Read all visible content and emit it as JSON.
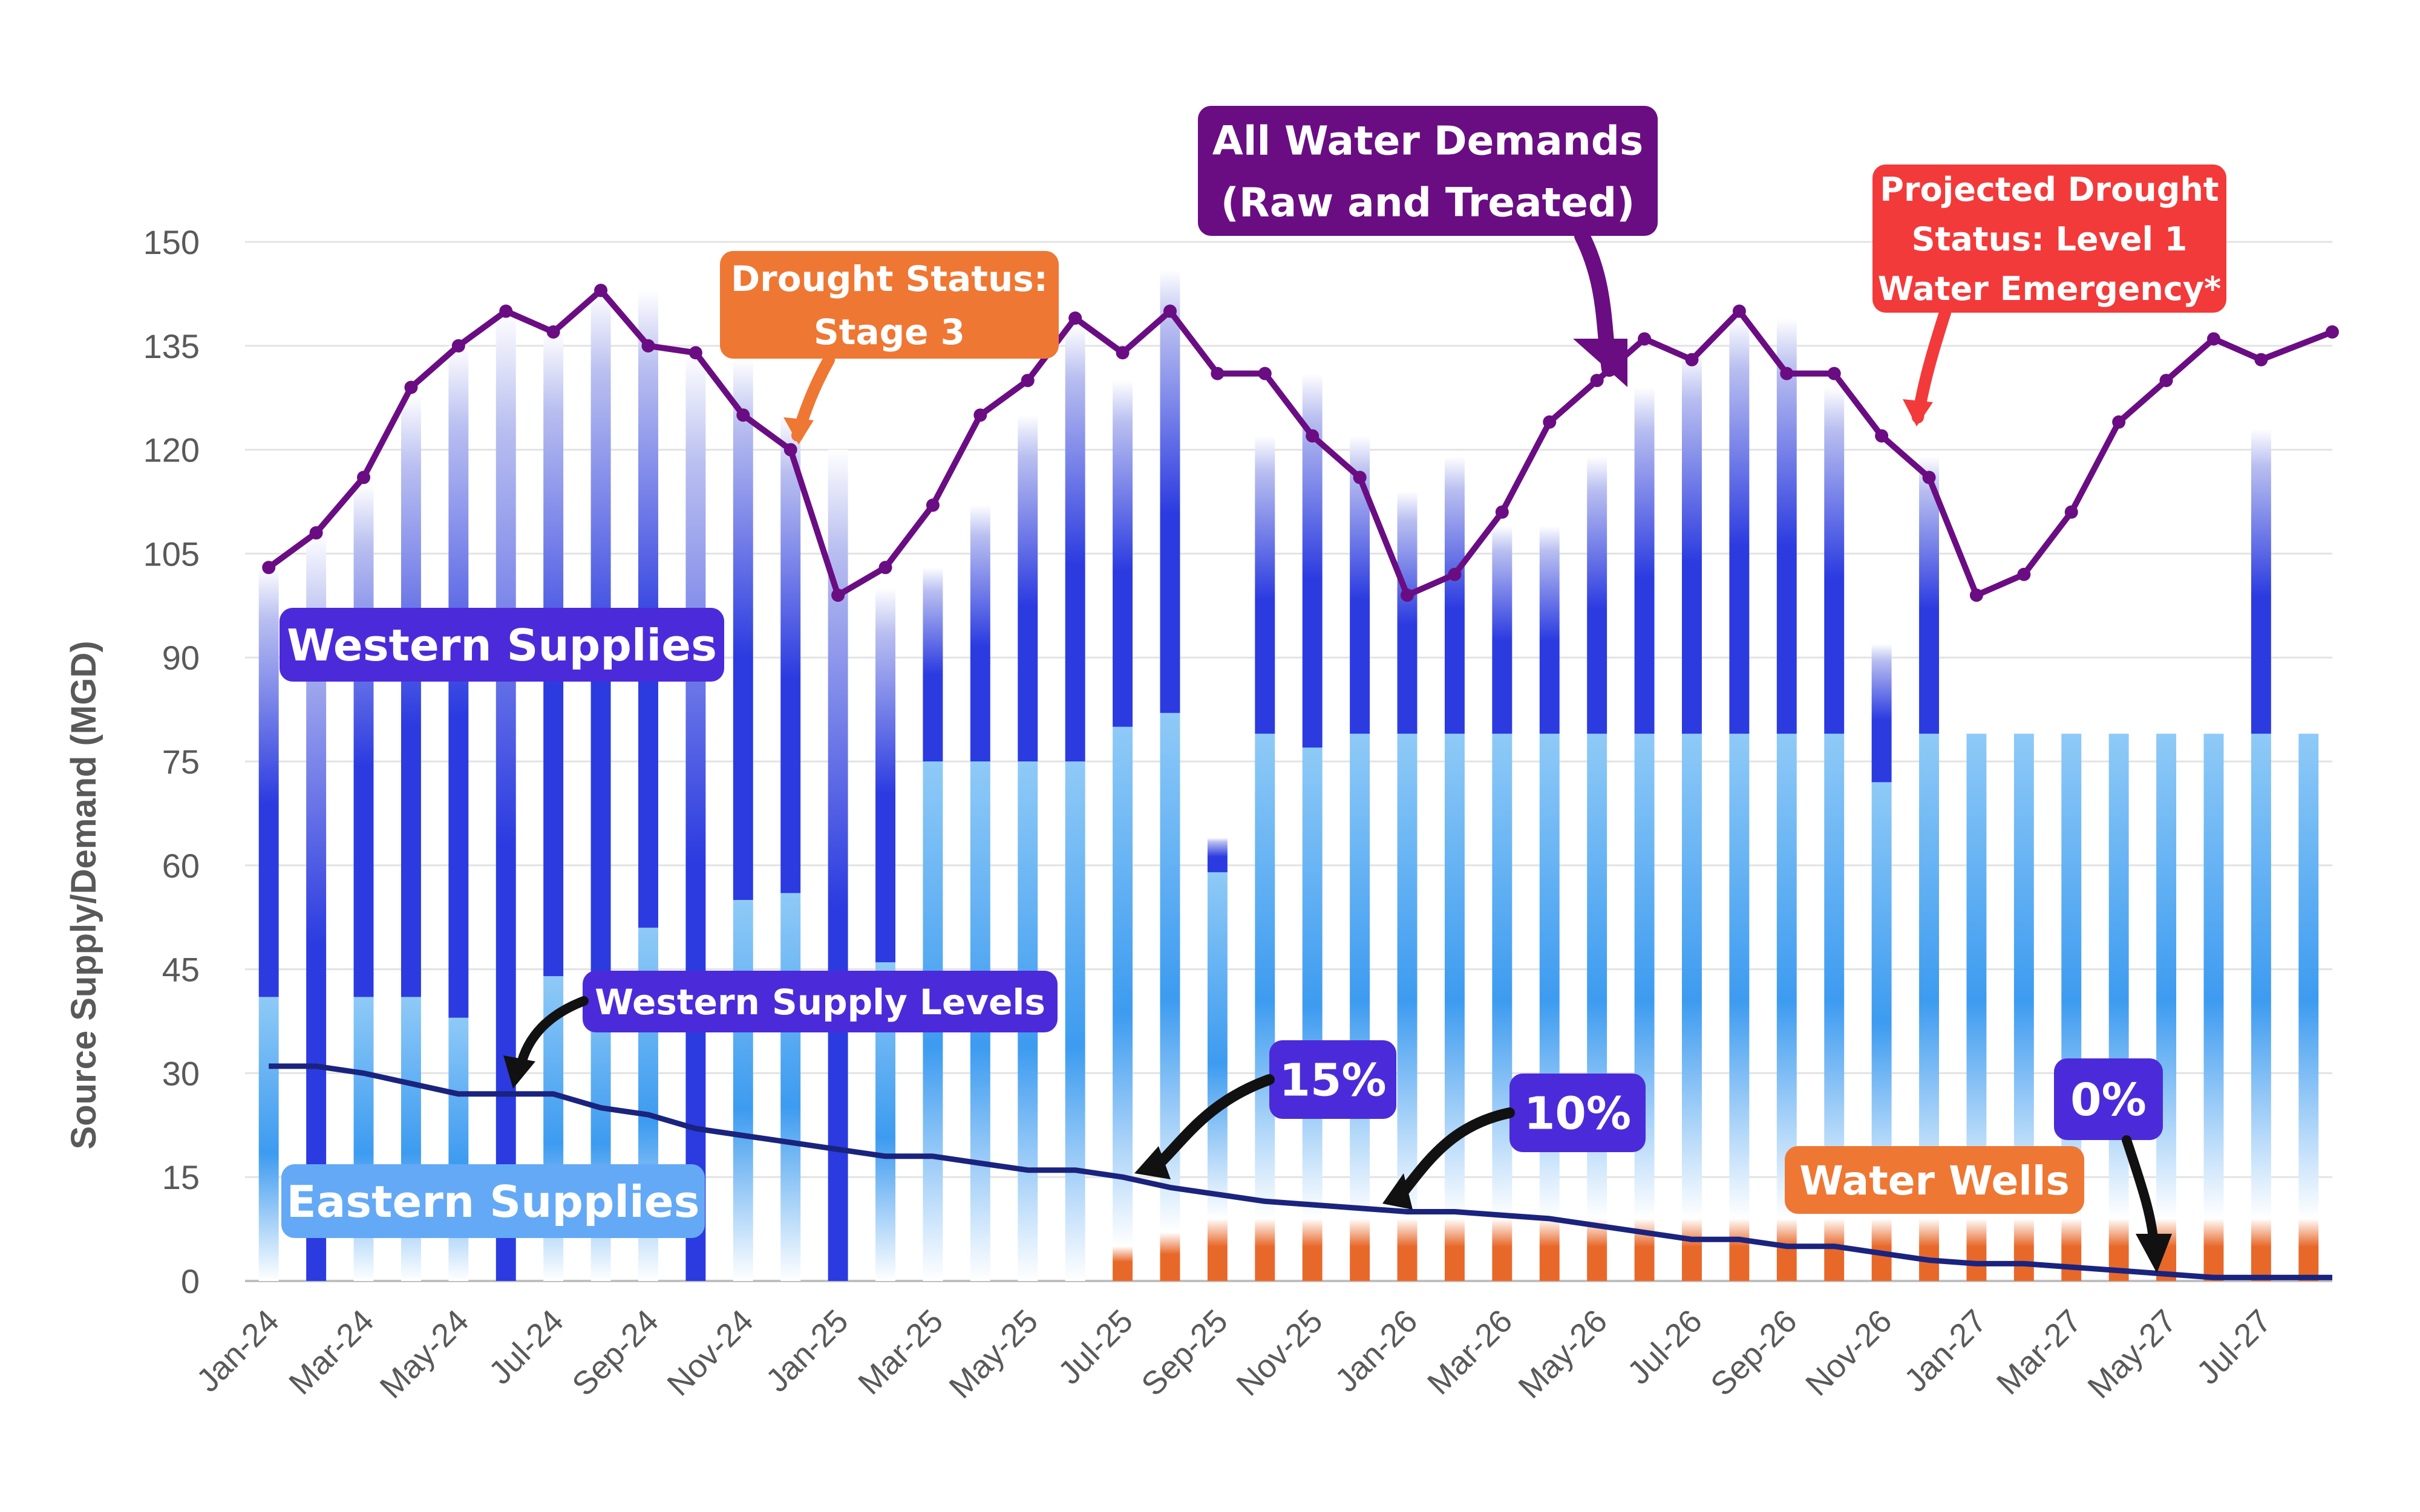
{
  "chart_data": {
    "type": "bar",
    "title": "",
    "xlabel": "",
    "ylabel": "Source Supply/Demand (MGD)",
    "ylim": [
      0,
      150
    ],
    "yticks": [
      "0",
      "15",
      "30",
      "45",
      "60",
      "75",
      "90",
      "105",
      "120",
      "135",
      "150"
    ],
    "categories": [
      "Jan-24",
      "Feb-24",
      "Mar-24",
      "Apr-24",
      "May-24",
      "Jun-24",
      "Jul-24",
      "Aug-24",
      "Sep-24",
      "Oct-24",
      "Nov-24",
      "Dec-24",
      "Jan-25",
      "Feb-25",
      "Mar-25",
      "Apr-25",
      "May-25",
      "Jun-25",
      "Jul-25",
      "Aug-25",
      "Sep-25",
      "Oct-25",
      "Nov-25",
      "Dec-25",
      "Jan-26",
      "Feb-26",
      "Mar-26",
      "Apr-26",
      "May-26",
      "Jun-26",
      "Jul-26",
      "Aug-26",
      "Sep-26",
      "Oct-26",
      "Nov-26",
      "Dec-26",
      "Jan-27",
      "Feb-27",
      "Mar-27",
      "Apr-27",
      "May-27",
      "Jun-27",
      "Jul-27",
      "Aug-27"
    ],
    "xtick_labels": [
      "Jan-24",
      "Mar-24",
      "May-24",
      "Jul-24",
      "Sep-24",
      "Nov-24",
      "Jan-25",
      "Mar-25",
      "May-25",
      "Jul-25",
      "Sep-25",
      "Nov-25",
      "Jan-26",
      "Mar-26",
      "May-26",
      "Jul-26",
      "Sep-26",
      "Nov-26",
      "Jan-27",
      "Mar-27",
      "May-27",
      "Jul-27"
    ],
    "series": [
      {
        "name": "Water Wells",
        "color": "#E8682A",
        "stack": true,
        "values": [
          0,
          0,
          0,
          0,
          0,
          0,
          0,
          0,
          0,
          0,
          0,
          0,
          0,
          0,
          0,
          0,
          0,
          0,
          5,
          7,
          9,
          9,
          9,
          9,
          9,
          9,
          9,
          9,
          9,
          9,
          9,
          9,
          9,
          9,
          9,
          9,
          9,
          9,
          9,
          9,
          9,
          9,
          9,
          9
        ]
      },
      {
        "name": "Eastern Supplies",
        "color": "#3D9BF0",
        "stack": true,
        "values": [
          41,
          0,
          41,
          41,
          38,
          0,
          44,
          44,
          51,
          0,
          55,
          56,
          0,
          46,
          75,
          75,
          75,
          75,
          75,
          75,
          50,
          70,
          68,
          70,
          70,
          70,
          70,
          70,
          70,
          70,
          70,
          70,
          70,
          70,
          63,
          70,
          70,
          70,
          70,
          70,
          70,
          70,
          70,
          70
        ]
      },
      {
        "name": "Western Supplies",
        "color": "#2B3BE0",
        "stack": true,
        "values": [
          62,
          108,
          74,
          87,
          97,
          140,
          93,
          99,
          92,
          134,
          78,
          69,
          120,
          54,
          28,
          37,
          50,
          63,
          50,
          64,
          5,
          43,
          54,
          43,
          35,
          40,
          30,
          30,
          40,
          50,
          55,
          60,
          60,
          50,
          20,
          40,
          0,
          0,
          0,
          0,
          0,
          0,
          44,
          0
        ]
      },
      {
        "name": "All Water Demands (Raw and Treated)",
        "color": "#6A0D83",
        "type": "line",
        "values": [
          103,
          108,
          116,
          129,
          135,
          140,
          137,
          143,
          135,
          134,
          125,
          120,
          99,
          103,
          112,
          125,
          130,
          139,
          134,
          140,
          131,
          131,
          122,
          116,
          99,
          102,
          111,
          124,
          130,
          136,
          133,
          140,
          131,
          131,
          122,
          116,
          99,
          102,
          111,
          124,
          130,
          136,
          133,
          137
        ]
      },
      {
        "name": "Western Supply Levels",
        "color": "#1A237E",
        "type": "line",
        "values": [
          31,
          31,
          30,
          28.5,
          27,
          27,
          27,
          25,
          24,
          22,
          21,
          20,
          19,
          18,
          18,
          17,
          16,
          16,
          15,
          13.5,
          12.5,
          11.5,
          11,
          10.5,
          10,
          10,
          9.5,
          9,
          8,
          7,
          6,
          6,
          5,
          5,
          4,
          3,
          2.5,
          2.5,
          2,
          1.5,
          1,
          0.5,
          0.5,
          0.5
        ]
      }
    ],
    "annotations": [
      {
        "text_lines": [
          "All Water Demands",
          "(Raw and Treated)"
        ],
        "color": "#6A0D83"
      },
      {
        "text_lines": [
          "Drought Status:",
          "Stage 3"
        ],
        "color": "#EE7733"
      },
      {
        "text_lines": [
          "Projected Drought",
          "Status: Level 1",
          "Water Emergency*"
        ],
        "color": "#F23A3A"
      },
      {
        "text_lines": [
          "Western Supplies"
        ],
        "color": "#4B2BD9"
      },
      {
        "text_lines": [
          "Western Supply Levels"
        ],
        "color": "#4B2BD9"
      },
      {
        "text_lines": [
          "15%"
        ],
        "color": "#4B2BD9"
      },
      {
        "text_lines": [
          "10%"
        ],
        "color": "#4B2BD9"
      },
      {
        "text_lines": [
          "0%"
        ],
        "color": "#4B2BD9"
      },
      {
        "text_lines": [
          "Water Wells"
        ],
        "color": "#EE7733"
      },
      {
        "text_lines": [
          "Eastern Supplies"
        ],
        "color": "#64A9F5"
      }
    ]
  }
}
